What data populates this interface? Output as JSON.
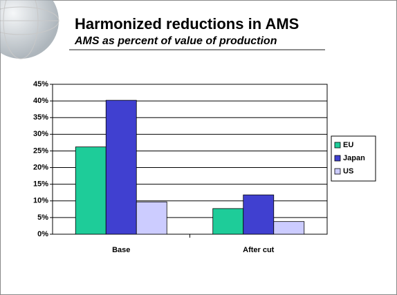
{
  "chart_data": {
    "type": "bar",
    "title": "Harmonized reductions in AMS",
    "subtitle": "AMS as percent of value of production",
    "categories": [
      "Base",
      "After cut"
    ],
    "series": [
      {
        "name": "EU",
        "color": "#1ecc99",
        "values": [
          26.2,
          7.7
        ]
      },
      {
        "name": "Japan",
        "color": "#4040d0",
        "values": [
          40.2,
          11.8
        ]
      },
      {
        "name": "US",
        "color": "#ccccff",
        "values": [
          9.7,
          3.8
        ]
      }
    ],
    "ylim": [
      0,
      45
    ],
    "yticks": [
      {
        "value": 0,
        "label": "0%"
      },
      {
        "value": 5,
        "label": "5%"
      },
      {
        "value": 10,
        "label": "10%"
      },
      {
        "value": 15,
        "label": "15%"
      },
      {
        "value": 20,
        "label": "20%"
      },
      {
        "value": 25,
        "label": "25%"
      },
      {
        "value": 30,
        "label": "30%"
      },
      {
        "value": 35,
        "label": "35%"
      },
      {
        "value": 40,
        "label": "40%"
      },
      {
        "value": 45,
        "label": "45%"
      }
    ],
    "grid": true,
    "legend": "right"
  }
}
